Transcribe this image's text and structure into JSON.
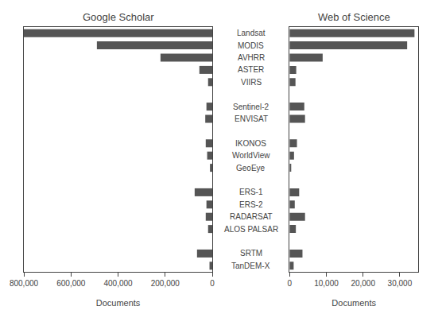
{
  "chart_data": [
    {
      "type": "bar",
      "orientation": "horizontal",
      "title": "Google Scholar",
      "categories": [
        "Landsat",
        "MODIS",
        "AVHRR",
        "ASTER",
        "VIIRS",
        null,
        "Sentinel-2",
        "ENVISAT",
        null,
        "IKONOS",
        "WorldView",
        "GeoEye",
        null,
        "ERS-1",
        "ERS-2",
        "RADARSAT",
        "ALOS PALSAR",
        null,
        "SRTM",
        "TanDEM-X"
      ],
      "values": [
        800000,
        490000,
        220000,
        55000,
        18000,
        0,
        25000,
        30000,
        0,
        28000,
        22000,
        10000,
        0,
        75000,
        25000,
        28000,
        18000,
        0,
        65000,
        12000
      ],
      "color": "#555555",
      "xlabel": "Documents",
      "xlim": [
        800000,
        0
      ],
      "xticks": [
        {
          "value": 800000,
          "label": "800,000"
        },
        {
          "value": 600000,
          "label": "600,000"
        },
        {
          "value": 400000,
          "label": "400,000"
        },
        {
          "value": 200000,
          "label": "200,000"
        },
        0
      ],
      "grid": false
    },
    {
      "type": "bar",
      "orientation": "horizontal",
      "title": "Web of Science",
      "categories": [
        "Landsat",
        "MODIS",
        "AVHRR",
        "ASTER",
        "VIIRS",
        null,
        "Sentinel-2",
        "ENVISAT",
        null,
        "IKONOS",
        "WorldView",
        "GeoEye",
        null,
        "ERS-1",
        "ERS-2",
        "RADARSAT",
        "ALOS PALSAR",
        null,
        "SRTM",
        "TanDEM-X"
      ],
      "values": [
        34000,
        32000,
        9000,
        1800,
        1600,
        0,
        4000,
        4200,
        0,
        2000,
        1200,
        400,
        0,
        2600,
        1400,
        4200,
        1700,
        0,
        3500,
        1100
      ],
      "color": "#555555",
      "xlabel": "Documents",
      "xlim": [
        0,
        35000
      ],
      "xticks": [
        0,
        {
          "value": 10000,
          "label": "10,000"
        },
        {
          "value": 20000,
          "label": "20,000"
        },
        {
          "value": 30000,
          "label": "30,000"
        }
      ],
      "grid": false
    }
  ]
}
